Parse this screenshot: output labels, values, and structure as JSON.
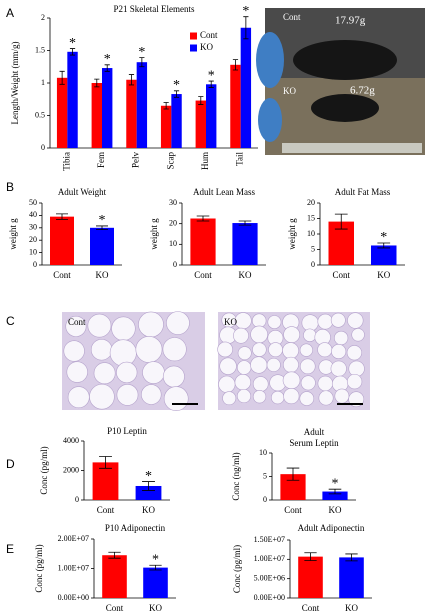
{
  "panel_labels": [
    "A",
    "B",
    "C",
    "D",
    "E"
  ],
  "photo": {
    "labels": [
      "Cont",
      "17.97g",
      "KO",
      "6.72g"
    ]
  },
  "histology": {
    "labels": [
      "Cont",
      "KO"
    ]
  },
  "chart_data": [
    {
      "type": "bar",
      "title": "P21 Skeletal Elements",
      "y_label": "Length/Weight (mm/g)",
      "categories": [
        "Tibia",
        "Fem",
        "Pelv",
        "Scap",
        "Hum",
        "Tail"
      ],
      "series": [
        {
          "name": "Cont",
          "color": "#ff0000",
          "values": [
            1.08,
            1.0,
            1.05,
            0.65,
            0.73,
            1.28
          ],
          "errors": [
            0.1,
            0.06,
            0.08,
            0.05,
            0.06,
            0.08
          ]
        },
        {
          "name": "KO",
          "color": "#0000ff",
          "values": [
            1.48,
            1.23,
            1.32,
            0.83,
            0.98,
            1.85
          ],
          "errors": [
            0.05,
            0.05,
            0.07,
            0.05,
            0.05,
            0.17
          ]
        }
      ],
      "ylim": [
        0,
        2
      ],
      "yticks": [
        0,
        0.5,
        1,
        1.5,
        2
      ],
      "legend": "top-right",
      "annotations": [
        {
          "text": "*",
          "x": "Tibia",
          "series": "KO"
        },
        {
          "text": "*",
          "x": "Fem",
          "series": "KO"
        },
        {
          "text": "*",
          "x": "Pelv",
          "series": "KO"
        },
        {
          "text": "*",
          "x": "Scap",
          "series": "KO"
        },
        {
          "text": "*",
          "x": "Hum",
          "series": "KO"
        },
        {
          "text": "*",
          "x": "Tail",
          "series": "KO"
        }
      ]
    },
    {
      "type": "bar",
      "title": "Adult  Weight",
      "y_label": "weight g",
      "categories": [
        "Cont",
        "KO"
      ],
      "values": [
        39,
        30
      ],
      "errors": [
        2.2,
        1.5
      ],
      "colors": [
        "#ff0000",
        "#0000ff"
      ],
      "ylim": [
        0,
        50
      ],
      "yticks": [
        0,
        10,
        20,
        30,
        40,
        50
      ],
      "annotations": [
        {
          "text": "*",
          "x": "KO"
        }
      ]
    },
    {
      "type": "bar",
      "title": "Adult  Lean Mass",
      "y_label": "weight g",
      "categories": [
        "Cont",
        "KO"
      ],
      "values": [
        22.5,
        20.3
      ],
      "errors": [
        1.2,
        1.0
      ],
      "colors": [
        "#ff0000",
        "#0000ff"
      ],
      "ylim": [
        0,
        30
      ],
      "yticks": [
        0,
        10,
        20,
        30
      ]
    },
    {
      "type": "bar",
      "title": "Adult  Fat Mass",
      "y_label": "weight g",
      "categories": [
        "Cont",
        "KO"
      ],
      "values": [
        14,
        6.3
      ],
      "errors": [
        2.4,
        0.8
      ],
      "colors": [
        "#ff0000",
        "#0000ff"
      ],
      "ylim": [
        0,
        20
      ],
      "yticks": [
        0,
        5,
        10,
        15,
        20
      ],
      "annotations": [
        {
          "text": "*",
          "x": "KO"
        }
      ]
    },
    {
      "type": "bar",
      "title": "P10 Leptin",
      "y_label": "Conc (pg/ml)",
      "categories": [
        "Cont",
        "KO"
      ],
      "values": [
        2550,
        950
      ],
      "errors": [
        400,
        300
      ],
      "colors": [
        "#ff0000",
        "#0000ff"
      ],
      "ylim": [
        0,
        4000
      ],
      "yticks": [
        0,
        2000,
        4000
      ],
      "annotations": [
        {
          "text": "*",
          "x": "KO"
        }
      ]
    },
    {
      "type": "bar",
      "title": [
        "Adult",
        "Serum Leptin"
      ],
      "y_label": "Conc (ng/ml)",
      "categories": [
        "Cont",
        "KO"
      ],
      "values": [
        5.5,
        1.8
      ],
      "errors": [
        1.3,
        0.5
      ],
      "colors": [
        "#ff0000",
        "#0000ff"
      ],
      "ylim": [
        0,
        10
      ],
      "yticks": [
        0,
        5,
        10
      ],
      "annotations": [
        {
          "text": "*",
          "x": "KO"
        }
      ]
    },
    {
      "type": "bar",
      "title": "P10 Adiponectin",
      "y_label": "Conc (pg/ml)",
      "categories": [
        "Cont",
        "KO"
      ],
      "values": [
        14500000,
        10300000
      ],
      "errors": [
        1000000,
        800000
      ],
      "colors": [
        "#ff0000",
        "#0000ff"
      ],
      "ylim": [
        0,
        20000000
      ],
      "yticks": [
        {
          "value": 0,
          "label": "0.00E+00"
        },
        {
          "value": 10000000,
          "label": "1.00E+07"
        },
        {
          "value": 20000000,
          "label": "2.00E+07"
        }
      ],
      "annotations": [
        {
          "text": "*",
          "x": "KO"
        }
      ]
    },
    {
      "type": "bar",
      "title": "Adult Adiponectin",
      "y_label": "Conc (pg/ml)",
      "categories": [
        "Cont",
        "KO"
      ],
      "values": [
        10700000,
        10500000
      ],
      "errors": [
        1000000,
        900000
      ],
      "colors": [
        "#ff0000",
        "#0000ff"
      ],
      "ylim": [
        0,
        15000000
      ],
      "yticks": [
        {
          "value": 0,
          "label": "0.00E+00"
        },
        {
          "value": 5000000,
          "label": "5.00E+06"
        },
        {
          "value": 10000000,
          "label": "1.00E+07"
        },
        {
          "value": 15000000,
          "label": "1.50E+07"
        }
      ]
    }
  ]
}
